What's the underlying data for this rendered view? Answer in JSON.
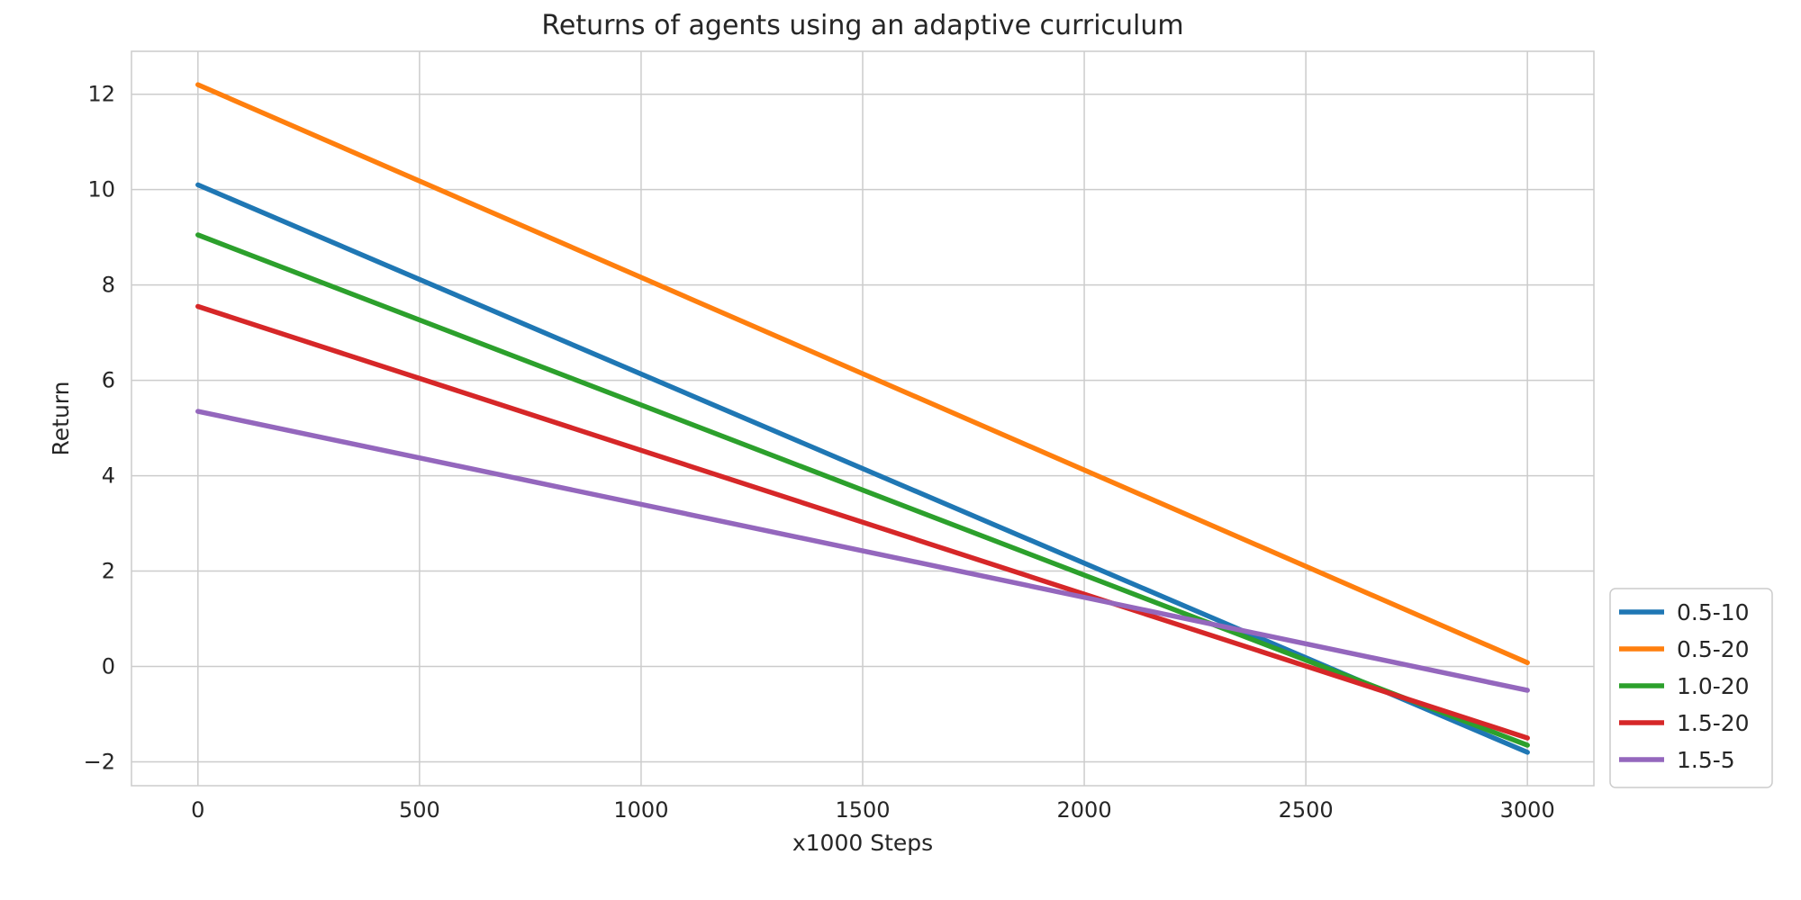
{
  "chart_data": {
    "type": "line",
    "title": "Returns of agents using an adaptive curriculum",
    "xlabel": "x1000 Steps",
    "ylabel": "Return",
    "xlim": [
      -150,
      3150
    ],
    "ylim": [
      -2.5,
      12.9
    ],
    "xticks": [
      0,
      500,
      1000,
      1500,
      2000,
      2500,
      3000
    ],
    "yticks": [
      -2,
      0,
      2,
      4,
      6,
      8,
      10,
      12
    ],
    "xtick_labels": [
      "0",
      "500",
      "1000",
      "1500",
      "2000",
      "2500",
      "3000"
    ],
    "ytick_labels": [
      "−2",
      "0",
      "2",
      "4",
      "6",
      "8",
      "10",
      "12"
    ],
    "grid": true,
    "legend_position": "lower-right",
    "series": [
      {
        "name": "0.5-10",
        "color": "#1f77b4",
        "x": [
          0,
          3000
        ],
        "y": [
          10.1,
          -1.8
        ]
      },
      {
        "name": "0.5-20",
        "color": "#ff7f0e",
        "x": [
          0,
          3000
        ],
        "y": [
          12.2,
          0.08
        ]
      },
      {
        "name": "1.0-20",
        "color": "#2ca02c",
        "x": [
          0,
          3000
        ],
        "y": [
          9.05,
          -1.65
        ]
      },
      {
        "name": "1.5-20",
        "color": "#d62728",
        "x": [
          0,
          3000
        ],
        "y": [
          7.55,
          -1.5
        ]
      },
      {
        "name": "1.5-5",
        "color": "#9467bd",
        "x": [
          0,
          3000
        ],
        "y": [
          5.35,
          -0.5
        ]
      }
    ]
  }
}
